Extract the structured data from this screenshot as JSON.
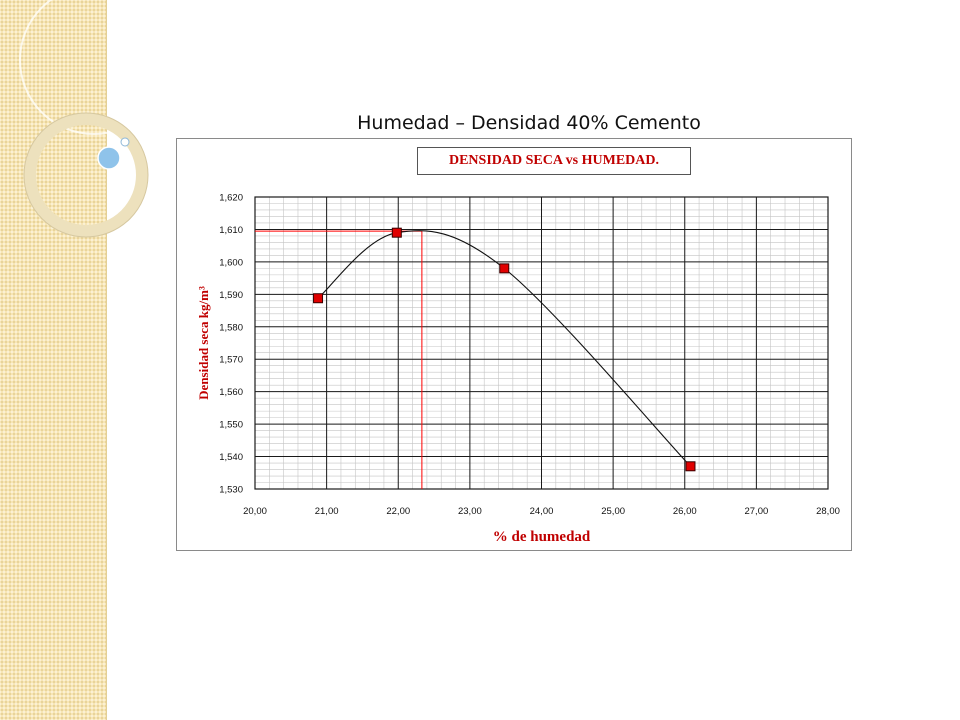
{
  "slide": {
    "title": "Humedad – Densidad 40% Cemento"
  },
  "colors": {
    "side_panel": "#f7e6b5",
    "series_marker": "#e00000",
    "title_text": "#c00000",
    "reference_line": "#ff0000"
  },
  "chart_data": {
    "type": "scatter",
    "title": "DENSIDAD SECA vs HUMEDAD.",
    "xlabel": "% de humedad",
    "ylabel": "Densidad seca kg/m³",
    "xlim": [
      20,
      28
    ],
    "ylim": [
      1.53,
      1.62
    ],
    "x_ticks": [
      20,
      21,
      22,
      23,
      24,
      25,
      26,
      27,
      28
    ],
    "x_tick_labels": [
      "20,00",
      "21,00",
      "22,00",
      "23,00",
      "24,00",
      "25,00",
      "26,00",
      "27,00",
      "28,00"
    ],
    "y_ticks": [
      1.53,
      1.54,
      1.55,
      1.56,
      1.57,
      1.58,
      1.59,
      1.6,
      1.61,
      1.62
    ],
    "y_tick_labels": [
      "1,530",
      "1,540",
      "1,550",
      "1,560",
      "1,570",
      "1,580",
      "1,590",
      "1,600",
      "1,610",
      "1,620"
    ],
    "grid": true,
    "minor_grid": true,
    "legend": "none",
    "series": [
      {
        "points": [
          {
            "x": 20.88,
            "y": 1.5888
          },
          {
            "x": 21.98,
            "y": 1.609
          },
          {
            "x": 23.48,
            "y": 1.598
          },
          {
            "x": 26.08,
            "y": 1.537
          }
        ],
        "smooth": true,
        "marker": "square"
      }
    ],
    "reference": {
      "optimum_moisture": 22.33,
      "max_dry_density": 1.6095
    }
  }
}
